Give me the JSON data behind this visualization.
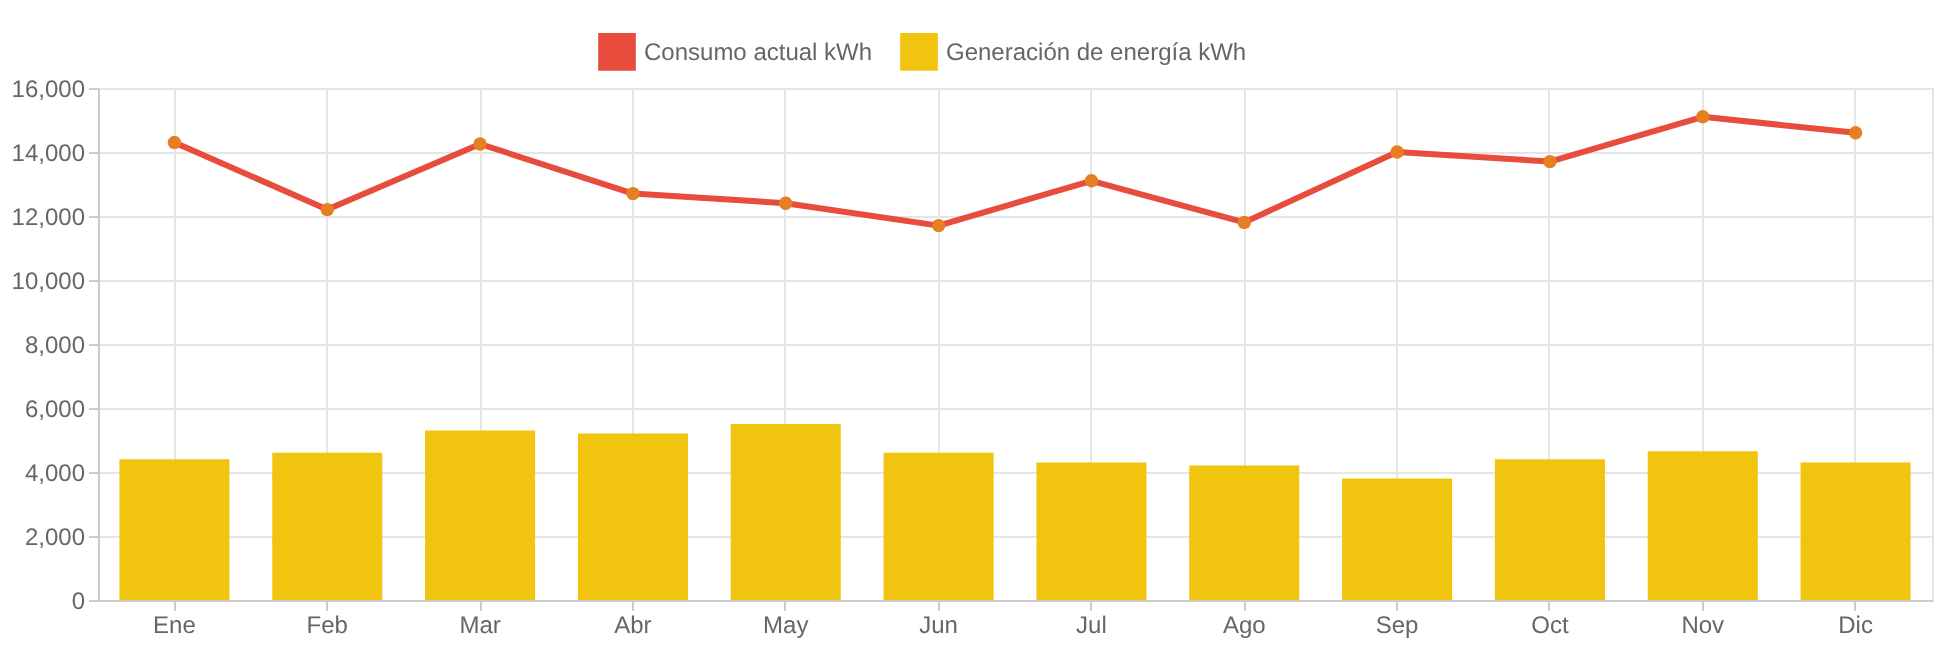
{
  "chart_data": {
    "type": "bar",
    "categories": [
      "Ene",
      "Feb",
      "Mar",
      "Abr",
      "May",
      "Jun",
      "Jul",
      "Ago",
      "Sep",
      "Oct",
      "Nov",
      "Dic"
    ],
    "series": [
      {
        "name": "Consumo actual kWh",
        "type": "line",
        "color": "#e74c3c",
        "values": [
          14300,
          12200,
          14250,
          12700,
          12400,
          11700,
          13100,
          11800,
          14000,
          13700,
          15100,
          14600
        ]
      },
      {
        "name": "Generación de energía kWh",
        "color": "#f1c40f",
        "values": [
          4400,
          4600,
          5300,
          5200,
          5500,
          4600,
          4300,
          4200,
          3800,
          4400,
          4650,
          4300
        ]
      }
    ],
    "ylim": [
      0,
      16000
    ],
    "yticks": [
      0,
      {
        "value": 2000,
        "label": "2,000"
      },
      {
        "value": 4000,
        "label": "4,000"
      },
      {
        "value": 6000,
        "label": "6,000"
      },
      {
        "value": 8000,
        "label": "8,000"
      },
      {
        "value": 10000,
        "label": "10,000"
      },
      {
        "value": 12000,
        "label": "12,000"
      },
      {
        "value": 14000,
        "label": "14,000"
      },
      {
        "value": 16000,
        "label": "16,000"
      }
    ],
    "grid": true,
    "legend": "top",
    "marker": "circle",
    "line_style": "solid"
  }
}
